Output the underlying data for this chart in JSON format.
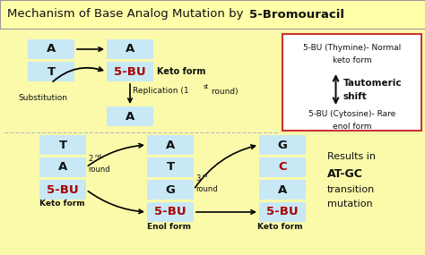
{
  "title_normal": "Mechanism of Base Analog Mutation by ",
  "title_bold": "5-Bromouracil",
  "bg_color": "#FAFAAA",
  "box_bg": "#C8E8F5",
  "red_color": "#AA0000",
  "black": "#111111",
  "title_bg": "#FFFFAA",
  "sidebar_border": "#CC3333",
  "sidebar_text1": "5-BU (Thymine)- Normal",
  "sidebar_text2": "keto form",
  "sidebar_text3": "5-BU (Cytosine)- Rare",
  "sidebar_text4": "enol form",
  "sidebar_bold1": "Tautomeric",
  "sidebar_bold2": "shift",
  "results1": "Results in",
  "results2": "AT-GC",
  "results3": "transition",
  "results4": "mutation",
  "keto_form": "Keto form",
  "enol_form": "Enol form",
  "substitution": "Substitution",
  "replication": "Replication (1",
  "replication2": " round)",
  "nd": "nd",
  "rd": "rd",
  "st": "st",
  "round": "round",
  "second": "2",
  "third": "3"
}
